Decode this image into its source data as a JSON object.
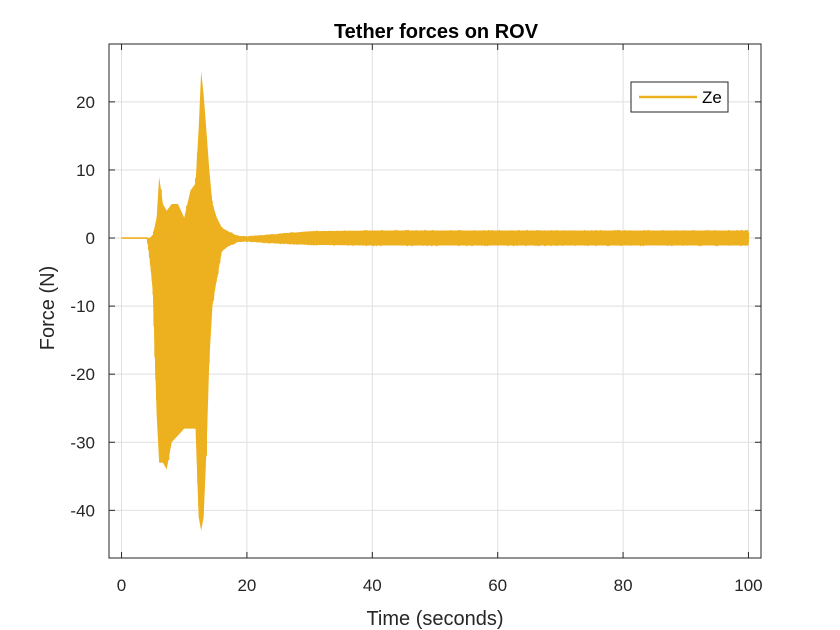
{
  "chart_data": {
    "type": "line",
    "title": "Tether forces on ROV",
    "xlabel": "Time (seconds)",
    "ylabel": "Force (N)",
    "xlim": [
      -2,
      102
    ],
    "ylim": [
      -47,
      28.5
    ],
    "xticks": [
      0,
      20,
      40,
      60,
      80,
      100
    ],
    "yticks": [
      20,
      10,
      0,
      -10,
      -20,
      -30,
      -40
    ],
    "xtick_labels": [
      "0",
      "20",
      "40",
      "60",
      "80",
      "100"
    ],
    "ytick_labels": [
      "20",
      "10",
      "0",
      "-10",
      "-20",
      "-30",
      "-40"
    ],
    "grid": true,
    "legend_position": "top-right",
    "series": [
      {
        "name": "Ze",
        "color": "#EDB120",
        "envelope": {
          "t": [
            0,
            4.1,
            4.5,
            5.0,
            5.6,
            6.0,
            6.6,
            7.2,
            8.0,
            9.0,
            10.0,
            11.0,
            11.8,
            12.3,
            12.7,
            13.1,
            13.6,
            14.0,
            14.5,
            15.2,
            16.0,
            17.0,
            18.5,
            20,
            25,
            30,
            40,
            60,
            80,
            100
          ],
          "upper": [
            0,
            0,
            0,
            0.5,
            3,
            9,
            5,
            4,
            5,
            5,
            3,
            7,
            8,
            16,
            24.5,
            21,
            15,
            10,
            5,
            3,
            1.5,
            1,
            0.3,
            0.2,
            0.6,
            1.0,
            1.1,
            1.1,
            1.1,
            1.1
          ],
          "lower": [
            0,
            0,
            -3,
            -8,
            -26,
            -33,
            -33,
            -34,
            -30,
            -29,
            -28,
            -28,
            -28,
            -41,
            -43,
            -41,
            -30,
            -18,
            -10,
            -6,
            -2,
            -1.2,
            -0.6,
            -0.5,
            -0.8,
            -1.0,
            -1.1,
            -1.1,
            -1.1,
            -1.1
          ]
        }
      }
    ]
  }
}
